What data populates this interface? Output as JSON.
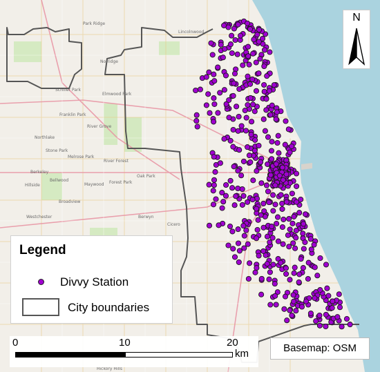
{
  "map": {
    "basemap_credit": "Basemap: OSM",
    "north_label": "N",
    "legend": {
      "title": "Legend",
      "items": [
        {
          "label": "Divvy Station",
          "symbol": "point",
          "color": "#a000d0"
        },
        {
          "label": "City boundaries",
          "symbol": "polygon-outline",
          "color": "#555555"
        }
      ]
    },
    "scalebar": {
      "ticks": [
        "0",
        "10",
        "20"
      ],
      "unit": "km"
    },
    "places": [
      "Park Ridge",
      "Lincolnwood",
      "Norridge",
      "Schiller Park",
      "Elmwood Park",
      "Franklin Park",
      "River Grove",
      "Northlake",
      "Stone Park",
      "Melrose Park",
      "River Forest",
      "Oak Park",
      "Berkeley",
      "Maywood",
      "Forest Park",
      "Bellwood",
      "Hillside",
      "Broadview",
      "Westchester",
      "Berwyn",
      "Cicero",
      "Hickory Hills"
    ],
    "colors": {
      "water": "#aad3df",
      "land": "#f2efe9",
      "station_fill": "#a000d0",
      "boundary": "#555555"
    }
  }
}
